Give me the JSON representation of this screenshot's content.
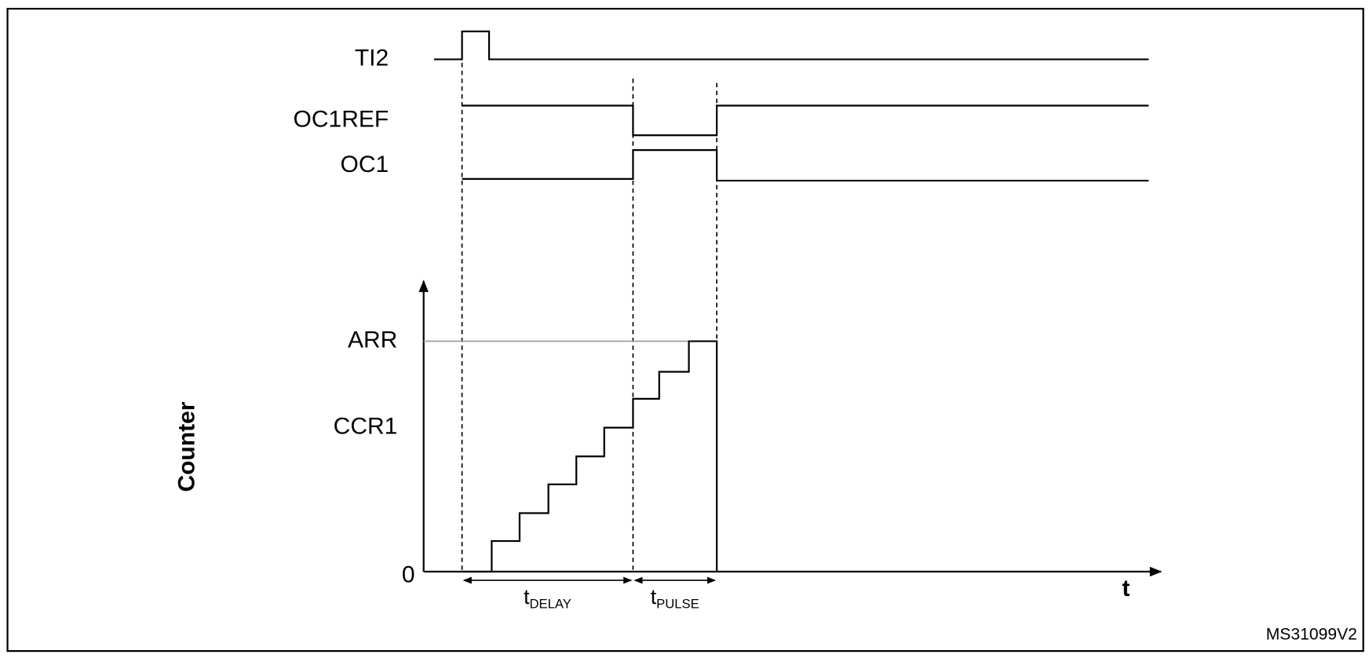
{
  "signals": [
    {
      "label": "TI2"
    },
    {
      "label": "OC1REF"
    },
    {
      "label": "OC1"
    }
  ],
  "counter": {
    "axis_label": "Counter",
    "levels": [
      "ARR",
      "CCR1",
      "0"
    ],
    "time_label": "t"
  },
  "intervals": [
    {
      "main": "t",
      "sub": "DELAY"
    },
    {
      "main": "t",
      "sub": "PULSE"
    }
  ],
  "figure_id": "MS31099V2"
}
